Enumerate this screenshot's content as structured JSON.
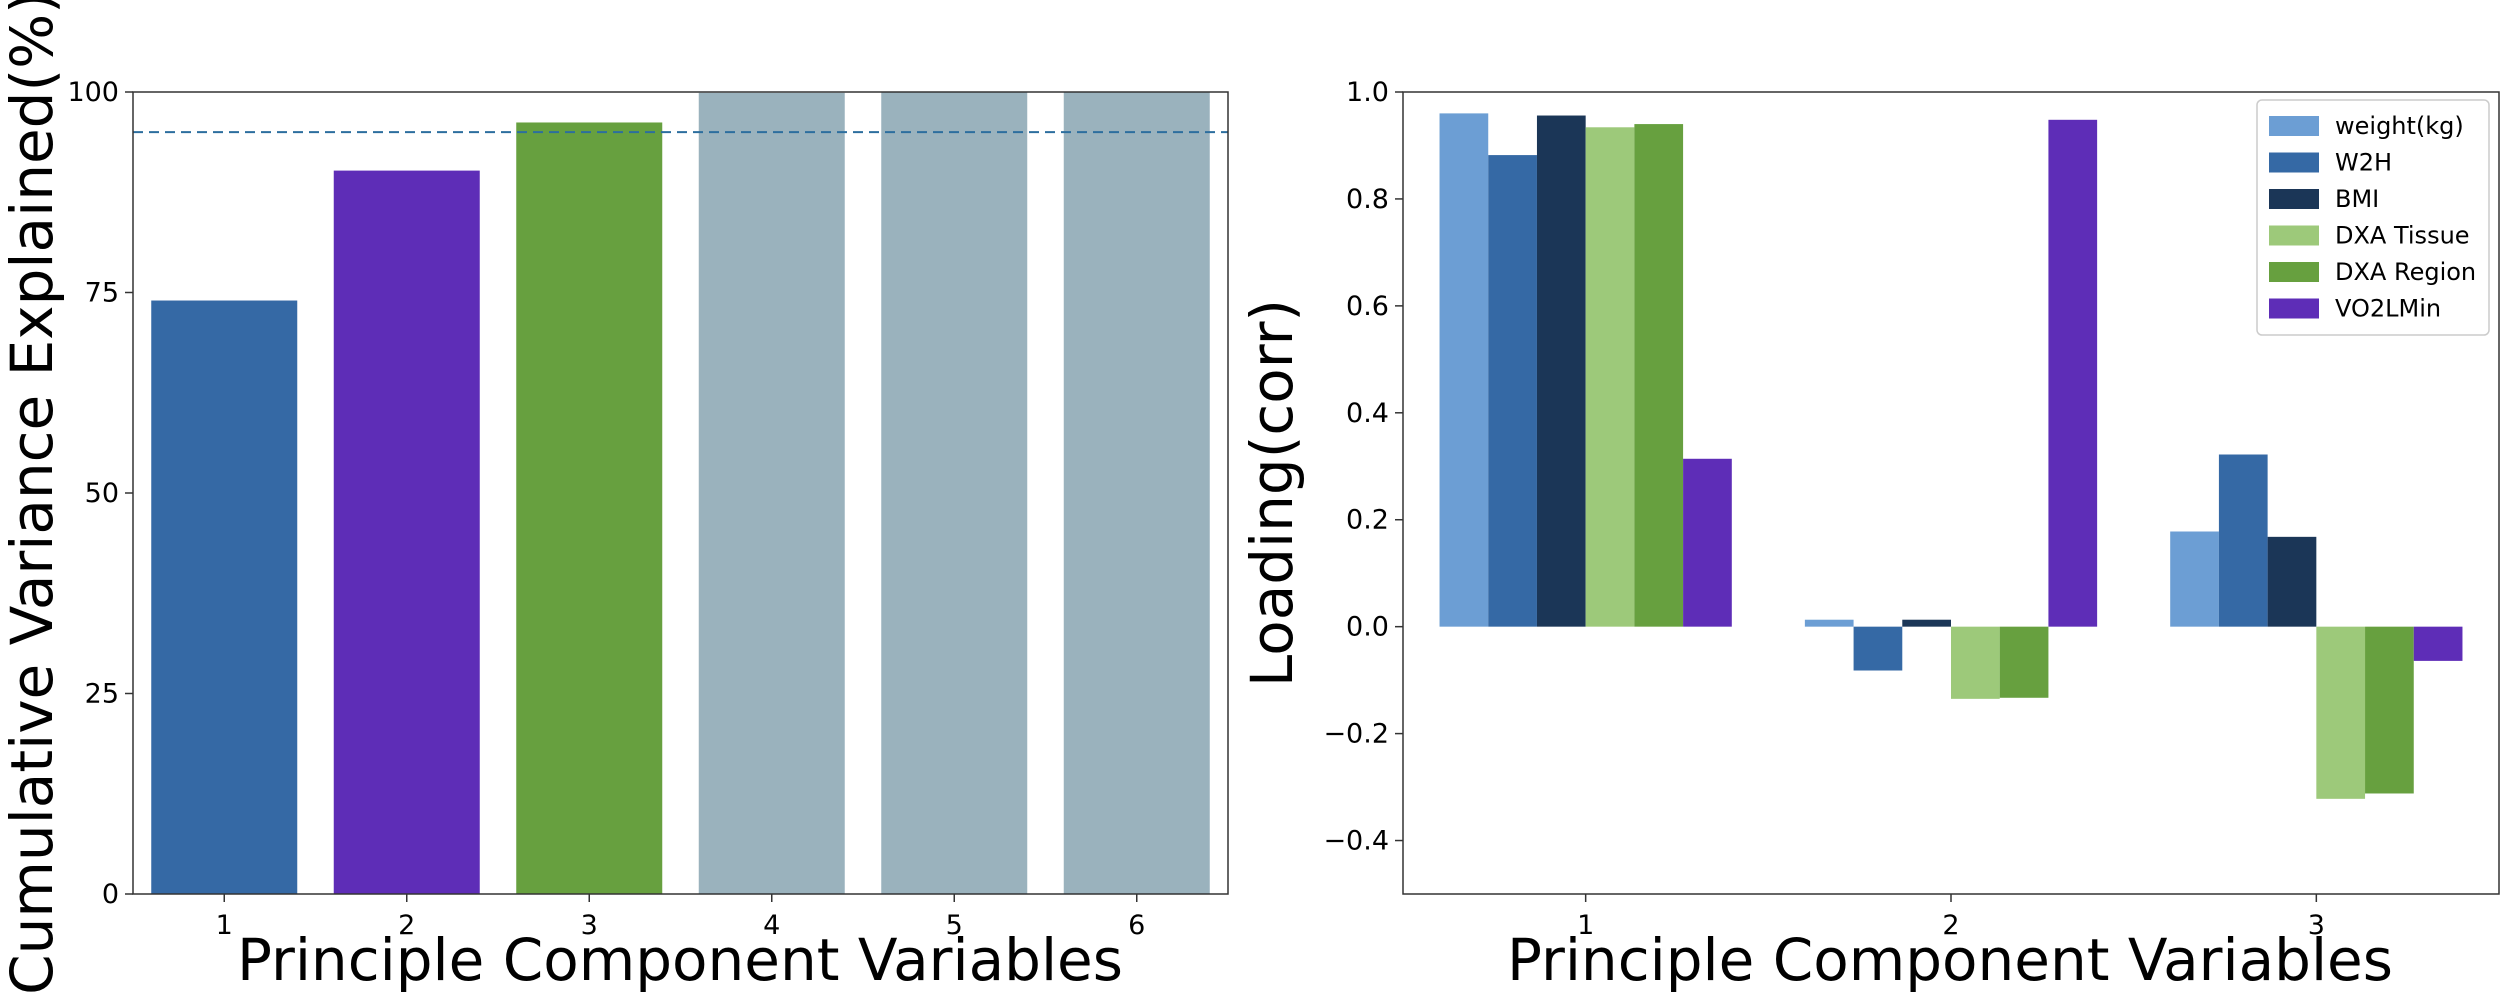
{
  "chart_data": [
    {
      "type": "bar",
      "title": "",
      "xlabel": "Principle Component Variables",
      "ylabel": "Cumulative Variance Explained(%)",
      "categories": [
        "1",
        "2",
        "3",
        "4",
        "5",
        "6"
      ],
      "values": [
        74,
        90.2,
        96.2,
        99.9,
        99.95,
        100
      ],
      "ylim": [
        0,
        100
      ],
      "yticks": [
        "0",
        "25",
        "50",
        "75",
        "100"
      ],
      "threshold": 95,
      "grid": false,
      "legend": "none",
      "bar_colors": [
        "#3569a5",
        "#5e2db7",
        "#67a03f",
        "#9ab2bd",
        "#9ab2bd",
        "#9ab2bd"
      ],
      "threshold_color": "#2c6e9e"
    },
    {
      "type": "bar",
      "title": "",
      "xlabel": "Principle Component Variables",
      "ylabel": "Loading(corr)",
      "categories": [
        "1",
        "2",
        "3"
      ],
      "series": [
        {
          "name": "weight(kg)",
          "values": [
            0.96,
            0.013,
            0.178
          ],
          "color": "#6c9ed4"
        },
        {
          "name": "W2H",
          "values": [
            0.882,
            -0.082,
            0.322
          ],
          "color": "#3569a5"
        },
        {
          "name": "BMI",
          "values": [
            0.956,
            0.013,
            0.168
          ],
          "color": "#1b3657"
        },
        {
          "name": "DXA Tissue",
          "values": [
            0.934,
            -0.135,
            -0.322
          ],
          "color": "#9dc97a"
        },
        {
          "name": "DXA Region",
          "values": [
            0.94,
            -0.133,
            -0.312
          ],
          "color": "#67a03f"
        },
        {
          "name": "VO2LMin",
          "values": [
            0.314,
            0.948,
            -0.064
          ],
          "color": "#5e2db7"
        }
      ],
      "ylim": [
        -0.5,
        1.0
      ],
      "yticks": [
        "−0.4",
        "−0.2",
        "0.0",
        "0.2",
        "0.4",
        "0.6",
        "0.8",
        "1.0"
      ],
      "grid": false,
      "legend": "top-right"
    }
  ]
}
